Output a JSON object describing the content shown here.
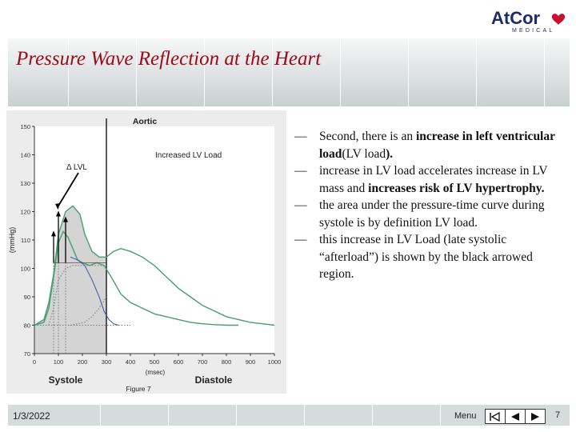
{
  "logo": {
    "brand": "AtCor",
    "sub": "MEDICAL"
  },
  "title": "Pressure Wave Reflection at the Heart",
  "figure": {
    "caption": "Figure 7",
    "annotation_delta": "Δ LVL",
    "annotation_load": "Increased LV Load",
    "systole_label": "Systole",
    "diastole_label": "Diastole",
    "chart_data": {
      "type": "line",
      "title": "Aortic",
      "xlabel": "(msec)",
      "ylabel": "(mmHg)",
      "xlim": [
        0,
        1000
      ],
      "ylim": [
        70,
        150
      ],
      "xticks": [
        0,
        100,
        200,
        300,
        400,
        500,
        600,
        700,
        800,
        900,
        1000
      ],
      "yticks": [
        70,
        80,
        90,
        100,
        110,
        120,
        130,
        140,
        150
      ],
      "grid": false,
      "series": [
        {
          "color": "#4a9e6e",
          "x": [
            0,
            40,
            60,
            80,
            100,
            130,
            160,
            190,
            210,
            240,
            270,
            300,
            330,
            360,
            400,
            450,
            500,
            550,
            600,
            650,
            700,
            750,
            800,
            850,
            900,
            950,
            1000
          ],
          "y": [
            80,
            82,
            88,
            98,
            112,
            120,
            122,
            119,
            112,
            106,
            104,
            104,
            106,
            107,
            106,
            104,
            101,
            97,
            93,
            90,
            87,
            85,
            83,
            82,
            81,
            80.5,
            80
          ]
        },
        {
          "color": "#4a9e6e",
          "x": [
            0,
            40,
            60,
            80,
            100,
            120,
            140,
            160,
            180,
            200,
            230,
            260,
            290,
            320,
            360,
            400,
            450,
            500,
            550,
            600,
            650,
            700,
            750,
            800,
            850
          ],
          "y": [
            80,
            81,
            86,
            97,
            109,
            113,
            111,
            107,
            103,
            102,
            101,
            102,
            101,
            97,
            91,
            88,
            86,
            84,
            83,
            82,
            81,
            80.5,
            80.2,
            80,
            80
          ]
        },
        {
          "color": "#3a4ea6",
          "x": [
            150,
            180,
            210,
            240,
            270,
            290,
            310,
            330,
            350
          ],
          "y": [
            104,
            103,
            101,
            96,
            90,
            85,
            82,
            80.5,
            80
          ]
        }
      ],
      "dotted_curves": [
        {
          "color": "#777777",
          "x": [
            60,
            80,
            100,
            130,
            160,
            200,
            250,
            300
          ],
          "y": [
            80,
            86,
            96,
            100,
            101,
            101,
            101,
            101
          ]
        },
        {
          "color": "#777777",
          "x": [
            150,
            180,
            210,
            240,
            270,
            300
          ],
          "y": [
            80,
            80.5,
            81,
            83,
            86,
            90
          ]
        }
      ],
      "shaded_region": {
        "x_from": 0,
        "x_to": 300,
        "color": "#d4d4d4"
      },
      "vertical_marker_x": 300,
      "arrows": [
        {
          "x": 80,
          "y_from": 102,
          "y_to": 113
        },
        {
          "x": 100,
          "y_from": 102,
          "y_to": 120
        },
        {
          "x": 130,
          "y_from": 102,
          "y_to": 118
        }
      ]
    }
  },
  "bullets": [
    {
      "dash": "—",
      "parts": [
        {
          "t": "Second, there is an ",
          "b": false
        },
        {
          "t": "increase in left ventricular load",
          "b": true
        },
        {
          "t": "(LV load",
          "b": false
        },
        {
          "t": ").",
          "b": true
        }
      ]
    },
    {
      "dash": "—",
      "parts": [
        {
          "t": "increase in LV load accelerates increase in LV mass and ",
          "b": false
        },
        {
          "t": "increases risk of LV hypertrophy.",
          "b": true
        }
      ]
    },
    {
      "dash": "—",
      "parts": [
        {
          "t": "the area under the pressure-time curve during systole is by definition LV load.",
          "b": false
        }
      ]
    },
    {
      "dash": "—",
      "parts": [
        {
          "t": "this increase in LV Load (late systolic “afterload”) is shown by the black arrowed region.",
          "b": false
        }
      ]
    }
  ],
  "footer": {
    "date": "1/3/2022",
    "menu": "Menu",
    "page": "7"
  }
}
